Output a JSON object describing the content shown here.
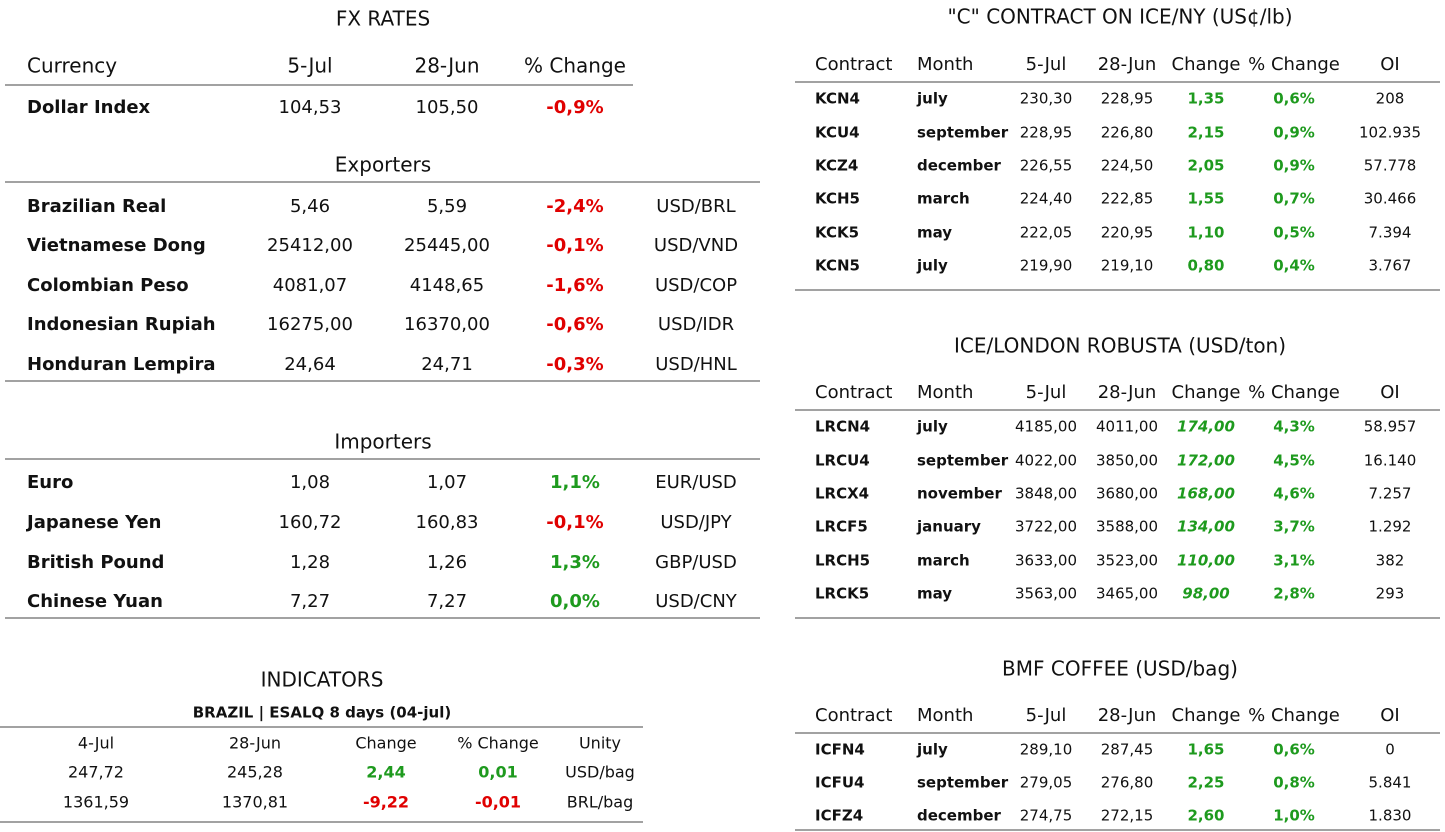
{
  "fx": {
    "title": "FX RATES",
    "header": [
      "Currency",
      "5-Jul",
      "28-Jun",
      "% Change"
    ],
    "dollar_index": [
      "Dollar Index",
      "104,53",
      "105,50",
      "-0,9%"
    ],
    "exporters": {
      "title": "Exporters",
      "rows": [
        [
          "Brazilian Real",
          "5,46",
          "5,59",
          "-2,4%",
          "USD/BRL"
        ],
        [
          "Vietnamese Dong",
          "25412,00",
          "25445,00",
          "-0,1%",
          "USD/VND"
        ],
        [
          "Colombian Peso",
          "4081,07",
          "4148,65",
          "-1,6%",
          "USD/COP"
        ],
        [
          "Indonesian Rupiah",
          "16275,00",
          "16370,00",
          "-0,6%",
          "USD/IDR"
        ],
        [
          "Honduran Lempira",
          "24,64",
          "24,71",
          "-0,3%",
          "USD/HNL"
        ]
      ]
    },
    "importers": {
      "title": "Importers",
      "rows": [
        [
          "Euro",
          "1,08",
          "1,07",
          "1,1%",
          "EUR/USD"
        ],
        [
          "Japanese Yen",
          "160,72",
          "160,83",
          "-0,1%",
          "USD/JPY"
        ],
        [
          "British Pound",
          "1,28",
          "1,26",
          "1,3%",
          "GBP/USD"
        ],
        [
          "Chinese Yuan",
          "7,27",
          "7,27",
          "0,0%",
          "USD/CNY"
        ]
      ]
    }
  },
  "indicators": {
    "title": "INDICATORS",
    "subtitle": "BRAZIL | ESALQ 8 days (04-jul)",
    "header": [
      "4-Jul",
      "28-Jun",
      "Change",
      "% Change",
      "Unity"
    ],
    "rows": [
      [
        "247,72",
        "245,28",
        "2,44",
        "0,01",
        "USD/bag"
      ],
      [
        "1361,59",
        "1370,81",
        "-9,22",
        "-0,01",
        "BRL/bag"
      ]
    ]
  },
  "c_contract": {
    "title": "\"C\" CONTRACT ON ICE/NY (US¢/lb)",
    "header": [
      "Contract",
      "Month",
      "5-Jul",
      "28-Jun",
      "Change",
      "% Change",
      "OI"
    ],
    "rows": [
      [
        "KCN4",
        "july",
        "230,30",
        "228,95",
        "1,35",
        "0,6%",
        "208"
      ],
      [
        "KCU4",
        "september",
        "228,95",
        "226,80",
        "2,15",
        "0,9%",
        "102.935"
      ],
      [
        "KCZ4",
        "december",
        "226,55",
        "224,50",
        "2,05",
        "0,9%",
        "57.778"
      ],
      [
        "KCH5",
        "march",
        "224,40",
        "222,85",
        "1,55",
        "0,7%",
        "30.466"
      ],
      [
        "KCK5",
        "may",
        "222,05",
        "220,95",
        "1,10",
        "0,5%",
        "7.394"
      ],
      [
        "KCN5",
        "july",
        "219,90",
        "219,10",
        "0,80",
        "0,4%",
        "3.767"
      ]
    ]
  },
  "robusta": {
    "title": "ICE/LONDON ROBUSTA (USD/ton)",
    "header": [
      "Contract",
      "Month",
      "5-Jul",
      "28-Jun",
      "Change",
      "% Change",
      "OI"
    ],
    "rows": [
      [
        "LRCN4",
        "july",
        "4185,00",
        "4011,00",
        "174,00",
        "4,3%",
        "58.957"
      ],
      [
        "LRCU4",
        "september",
        "4022,00",
        "3850,00",
        "172,00",
        "4,5%",
        "16.140"
      ],
      [
        "LRCX4",
        "november",
        "3848,00",
        "3680,00",
        "168,00",
        "4,6%",
        "7.257"
      ],
      [
        "LRCF5",
        "january",
        "3722,00",
        "3588,00",
        "134,00",
        "3,7%",
        "1.292"
      ],
      [
        "LRCH5",
        "march",
        "3633,00",
        "3523,00",
        "110,00",
        "3,1%",
        "382"
      ],
      [
        "LRCK5",
        "may",
        "3563,00",
        "3465,00",
        "98,00",
        "2,8%",
        "293"
      ]
    ]
  },
  "bmf": {
    "title": "BMF COFFEE (USD/bag)",
    "header": [
      "Contract",
      "Month",
      "5-Jul",
      "28-Jun",
      "Change",
      "% Change",
      "OI"
    ],
    "rows": [
      [
        "ICFN4",
        "july",
        "289,10",
        "287,45",
        "1,65",
        "0,6%",
        "0"
      ],
      [
        "ICFU4",
        "september",
        "279,05",
        "276,80",
        "2,25",
        "0,8%",
        "5.841"
      ],
      [
        "ICFZ4",
        "december",
        "274,75",
        "272,15",
        "2,60",
        "1,0%",
        "1.830"
      ]
    ]
  }
}
